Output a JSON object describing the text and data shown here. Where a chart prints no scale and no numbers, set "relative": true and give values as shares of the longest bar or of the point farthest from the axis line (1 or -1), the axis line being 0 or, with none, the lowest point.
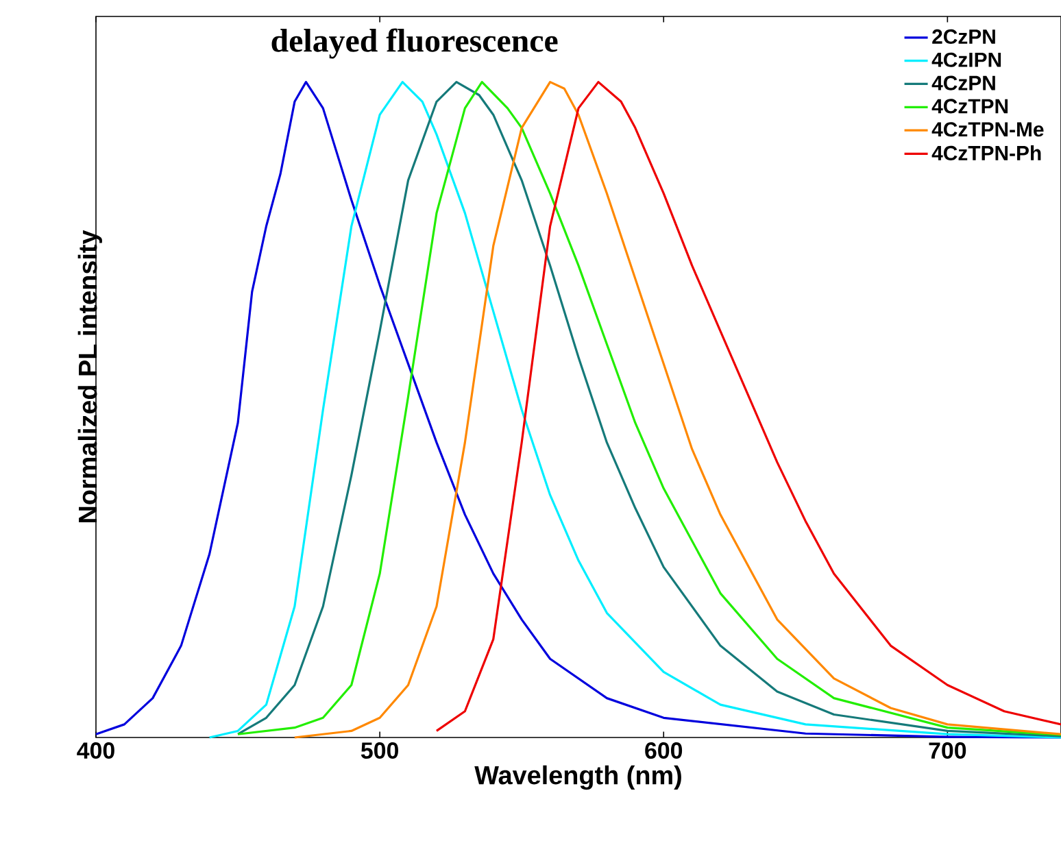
{
  "chart_data": {
    "type": "line",
    "relative": true,
    "xlabel": "Wavelength (nm)",
    "ylabel": "Normalized PL intensity",
    "annotations": [
      "delayed fluorescence"
    ],
    "xlim": [
      400,
      740
    ],
    "xticks": [
      400,
      500,
      600,
      700
    ],
    "legend": "top right",
    "marker": "none",
    "line_style": "solid",
    "series": [
      {
        "name": "2CzPN",
        "color": "#0000dd",
        "x": [
          400,
          410,
          420,
          430,
          440,
          450,
          455,
          460,
          465,
          470,
          474,
          480,
          490,
          500,
          510,
          520,
          530,
          540,
          550,
          560,
          580,
          600,
          650,
          700,
          740
        ],
        "values": [
          0.005,
          0.02,
          0.06,
          0.14,
          0.28,
          0.48,
          0.68,
          0.78,
          0.86,
          0.97,
          1.0,
          0.96,
          0.82,
          0.69,
          0.57,
          0.45,
          0.34,
          0.25,
          0.18,
          0.12,
          0.06,
          0.03,
          0.006,
          0.001,
          0
        ]
      },
      {
        "name": "4CzIPN",
        "color": "#00eeff",
        "x": [
          440,
          450,
          460,
          470,
          480,
          490,
          500,
          508,
          515,
          520,
          530,
          540,
          550,
          560,
          570,
          580,
          600,
          620,
          650,
          700,
          740
        ],
        "values": [
          0,
          0.01,
          0.05,
          0.2,
          0.5,
          0.78,
          0.95,
          1.0,
          0.97,
          0.92,
          0.8,
          0.65,
          0.5,
          0.37,
          0.27,
          0.19,
          0.1,
          0.05,
          0.02,
          0.005,
          0
        ]
      },
      {
        "name": "4CzPN",
        "color": "#157a7a",
        "x": [
          450,
          460,
          470,
          480,
          490,
          500,
          510,
          520,
          527,
          535,
          540,
          550,
          560,
          570,
          580,
          590,
          600,
          620,
          640,
          660,
          700,
          740
        ],
        "values": [
          0.005,
          0.03,
          0.08,
          0.2,
          0.4,
          0.62,
          0.85,
          0.97,
          1.0,
          0.98,
          0.95,
          0.85,
          0.72,
          0.58,
          0.45,
          0.35,
          0.26,
          0.14,
          0.07,
          0.035,
          0.01,
          0.002
        ]
      },
      {
        "name": "4CzTPN",
        "color": "#22ee00",
        "x": [
          450,
          470,
          480,
          490,
          500,
          510,
          520,
          530,
          536,
          545,
          550,
          560,
          570,
          580,
          590,
          600,
          620,
          640,
          660,
          700,
          740
        ],
        "values": [
          0.005,
          0.015,
          0.03,
          0.08,
          0.25,
          0.52,
          0.8,
          0.96,
          1.0,
          0.96,
          0.93,
          0.83,
          0.72,
          0.6,
          0.48,
          0.38,
          0.22,
          0.12,
          0.06,
          0.015,
          0.004
        ]
      },
      {
        "name": "4CzTPN-Me",
        "color": "#ff8800",
        "x": [
          470,
          490,
          500,
          510,
          520,
          530,
          540,
          550,
          560,
          565,
          570,
          580,
          590,
          600,
          610,
          620,
          640,
          660,
          680,
          700,
          740
        ],
        "values": [
          0,
          0.01,
          0.03,
          0.08,
          0.2,
          0.45,
          0.75,
          0.93,
          1.0,
          0.99,
          0.95,
          0.83,
          0.7,
          0.57,
          0.44,
          0.34,
          0.18,
          0.09,
          0.045,
          0.02,
          0.005
        ]
      },
      {
        "name": "4CzTPN-Ph",
        "color": "#ee0000",
        "x": [
          520,
          530,
          540,
          550,
          560,
          570,
          577,
          585,
          590,
          600,
          610,
          620,
          630,
          640,
          650,
          660,
          680,
          700,
          720,
          740
        ],
        "values": [
          0.01,
          0.04,
          0.15,
          0.45,
          0.78,
          0.96,
          1.0,
          0.97,
          0.93,
          0.83,
          0.72,
          0.62,
          0.52,
          0.42,
          0.33,
          0.25,
          0.14,
          0.08,
          0.04,
          0.02
        ]
      }
    ]
  }
}
